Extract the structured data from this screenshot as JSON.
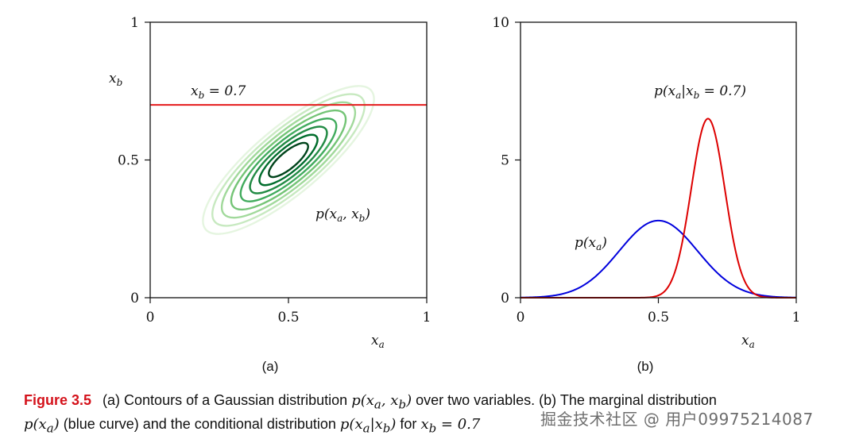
{
  "chart_data": [
    {
      "type": "contour",
      "panel_label": "(a)",
      "xlabel": "x_a",
      "ylabel": "x_b",
      "xlim": [
        0,
        1
      ],
      "ylim": [
        0,
        1
      ],
      "x_ticks": [
        "0",
        "0.5",
        "1"
      ],
      "y_ticks": [
        "0",
        "0.5",
        "1"
      ],
      "gaussian": {
        "mean": [
          0.5,
          0.5
        ],
        "major_axis_angle_deg": 40,
        "contour_levels": 8
      },
      "hline": {
        "y": 0.7,
        "label": "x_b = 0.7",
        "color": "#e41a1c"
      },
      "annotation": "p(x_a, x_b)",
      "contour_colors": [
        "#e5f5e0",
        "#c7e9c0",
        "#a1d99b",
        "#74c476",
        "#41ab5d",
        "#238b45",
        "#006d2c",
        "#00441b"
      ]
    },
    {
      "type": "line",
      "panel_label": "(b)",
      "xlabel": "x_a",
      "xlim": [
        0,
        1
      ],
      "ylim": [
        0,
        10
      ],
      "x_ticks": [
        "0",
        "0.5",
        "1"
      ],
      "y_ticks": [
        "0",
        "5",
        "10"
      ],
      "series": [
        {
          "name": "p(x_a)",
          "color": "#0000dd",
          "mean": 0.5,
          "peak": 2.8,
          "std": 0.142
        },
        {
          "name": "p(x_a|x_b = 0.7)",
          "color": "#dd0000",
          "mean": 0.68,
          "peak": 6.5,
          "std": 0.061
        }
      ]
    }
  ],
  "caption": {
    "label": "Figure 3.5",
    "line1_pre": "(a) Contours of a Gaussian distribution ",
    "line1_math": "p(xa, xb)",
    "line1_post": " over two variables. (b) The marginal distribution",
    "line2_math1": "p(xa)",
    "line2_mid": " (blue curve) and the conditional distribution ",
    "line2_math2": "p(xa|xb)",
    "line2_for": " for ",
    "line2_math3": "xb = 0.7"
  },
  "watermark": "掘金技术社区 @ 用户09975214087"
}
